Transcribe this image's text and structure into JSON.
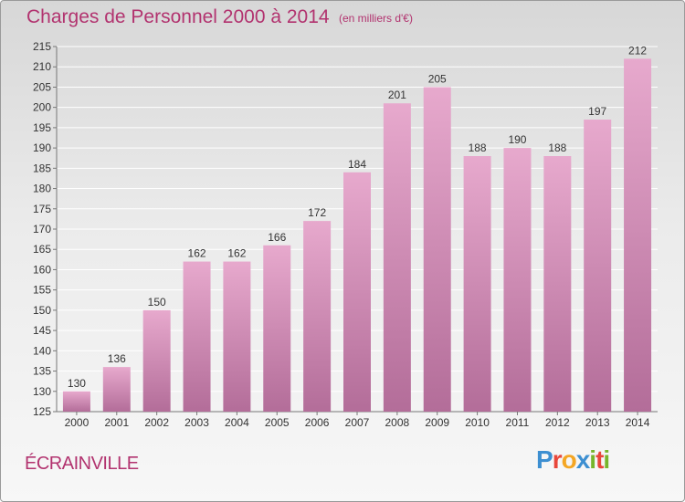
{
  "title": "Charges de Personnel 2000 à 2014",
  "subtitle": "(en milliers d'€)",
  "town": "ÉCRAINVILLE",
  "logo": {
    "letters": [
      "P",
      "r",
      "o",
      "x",
      "i",
      "t",
      "i"
    ],
    "colors": [
      "#3d8fd1",
      "#e8463a",
      "#f4a623",
      "#3d8fd1",
      "#77b52b",
      "#e8463a",
      "#77b52b"
    ]
  },
  "colors": {
    "accent": "#b2336f",
    "bar_top": "#e7a9cd",
    "bar_bottom": "#b36d99",
    "axis": "#777777",
    "grid": "#ffffff"
  },
  "chart_data": {
    "type": "bar",
    "categories": [
      "2000",
      "2001",
      "2002",
      "2003",
      "2004",
      "2005",
      "2006",
      "2007",
      "2008",
      "2009",
      "2010",
      "2011",
      "2012",
      "2013",
      "2014"
    ],
    "values": [
      130,
      136,
      150,
      162,
      162,
      166,
      172,
      184,
      201,
      205,
      188,
      190,
      188,
      197,
      212
    ],
    "ylim": [
      125,
      215
    ],
    "yticks": [
      125,
      130,
      135,
      140,
      145,
      150,
      155,
      160,
      165,
      170,
      175,
      180,
      185,
      190,
      195,
      200,
      205,
      210,
      215
    ],
    "grid": true,
    "data_labels": true
  }
}
